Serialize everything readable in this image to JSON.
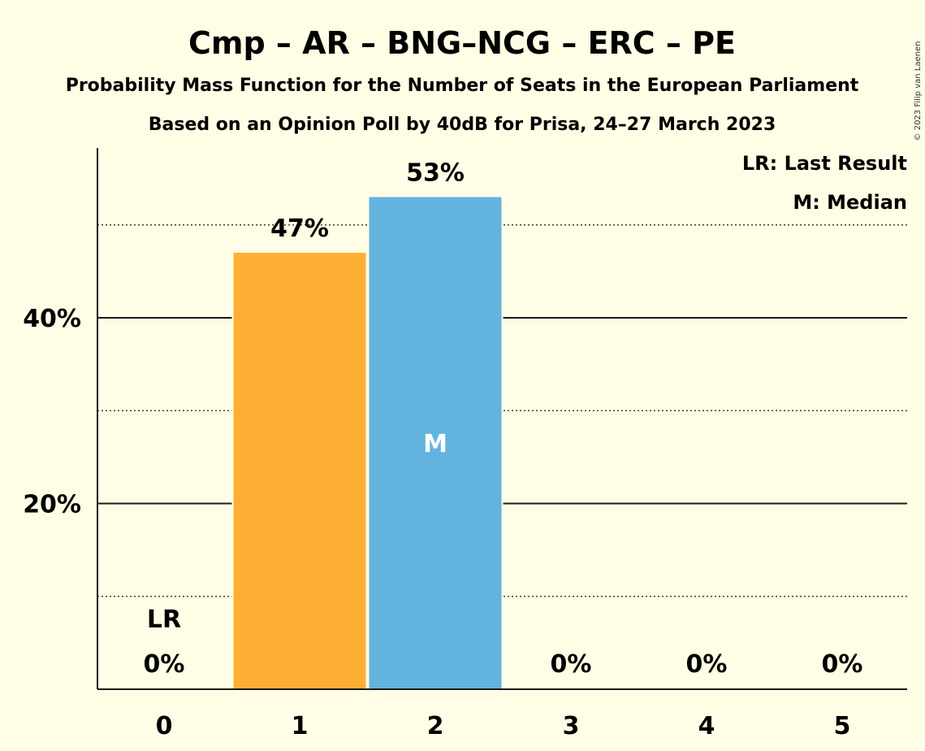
{
  "chart_data": {
    "type": "bar",
    "title": "Cmp – AR – BNG–NCG – ERC – PE",
    "subtitle": "Probability Mass Function for the Number of Seats in the European Parliament",
    "subtitle2": "Based on an Opinion Poll by 40dB for Prisa, 24–27 March 2023",
    "copyright": "© 2023 Filip van Laenen",
    "categories": [
      "0",
      "1",
      "2",
      "3",
      "4",
      "5"
    ],
    "values": [
      0,
      47,
      53,
      0,
      0,
      0
    ],
    "value_labels": [
      "0%",
      "47%",
      "53%",
      "0%",
      "0%",
      "0%"
    ],
    "bar_colors": [
      "#FFAE35",
      "#FFAE35",
      "#62B4DF",
      "#62B4DF",
      "#62B4DF",
      "#62B4DF"
    ],
    "last_result_index": 0,
    "last_result_marker": "LR",
    "median_index": 2,
    "median_marker": "M",
    "ylim": [
      0,
      58
    ],
    "y_ticks": [
      20,
      40
    ],
    "y_tick_labels": [
      "20%",
      "40%"
    ],
    "y_minor_gridlines": [
      10,
      30,
      50
    ],
    "legend": [
      "LR: Last Result",
      "M: Median"
    ],
    "legend_position": "top-right",
    "grid": true
  }
}
